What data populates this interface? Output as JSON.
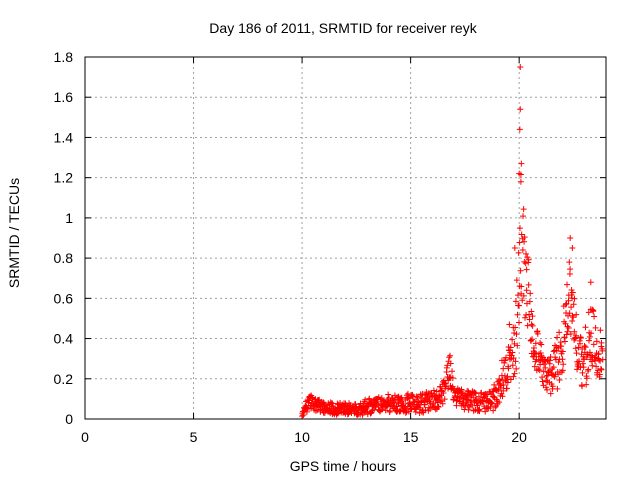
{
  "chart_data": {
    "type": "scatter",
    "title": "Day 186 of 2011, SRMTID for receiver reyk",
    "xlabel": "GPS time / hours",
    "ylabel": "SRMTID / TECUs",
    "xlim": [
      0,
      24
    ],
    "ylim": [
      0,
      1.8
    ],
    "xticks": [
      0,
      5,
      10,
      15,
      20
    ],
    "xtick_labels": [
      "0",
      "5",
      "10",
      "15",
      "20"
    ],
    "yticks": [
      0,
      0.2,
      0.4,
      0.6,
      0.8,
      1.0,
      1.2,
      1.4,
      1.6,
      1.8
    ],
    "ytick_labels": [
      "0",
      "0.2",
      "0.4",
      "0.6",
      "0.8",
      "1",
      "1.2",
      "1.4",
      "1.6",
      "1.8"
    ],
    "grid": true,
    "marker": "+",
    "series": [
      {
        "name": "SRMTID",
        "color": "#ff0000",
        "anchors": {
          "x": [
            10.0,
            10.2,
            10.4,
            10.6,
            11.0,
            11.5,
            12.0,
            12.5,
            13.0,
            13.5,
            14.0,
            14.5,
            15.0,
            15.5,
            16.0,
            16.3,
            16.6,
            16.8,
            17.0,
            17.3,
            17.6,
            18.0,
            18.4,
            18.8,
            19.0,
            19.2,
            19.4,
            19.6,
            19.8,
            19.95,
            20.05,
            20.15,
            20.3,
            20.45,
            20.6,
            20.8,
            21.0,
            21.2,
            21.4,
            21.6,
            21.8,
            22.0,
            22.2,
            22.4,
            22.6,
            22.8,
            23.0,
            23.2,
            23.4,
            23.6,
            23.85
          ],
          "y": [
            0.02,
            0.06,
            0.08,
            0.07,
            0.06,
            0.05,
            0.05,
            0.05,
            0.06,
            0.07,
            0.08,
            0.07,
            0.08,
            0.08,
            0.09,
            0.1,
            0.15,
            0.25,
            0.12,
            0.1,
            0.09,
            0.09,
            0.08,
            0.1,
            0.14,
            0.2,
            0.25,
            0.28,
            0.38,
            0.6,
            0.95,
            0.82,
            0.7,
            0.62,
            0.45,
            0.35,
            0.28,
            0.22,
            0.2,
            0.25,
            0.3,
            0.35,
            0.55,
            0.62,
            0.4,
            0.3,
            0.28,
            0.38,
            0.42,
            0.3,
            0.34
          ],
          "spread": [
            0.01,
            0.04,
            0.04,
            0.03,
            0.03,
            0.03,
            0.03,
            0.03,
            0.04,
            0.04,
            0.05,
            0.04,
            0.05,
            0.05,
            0.05,
            0.05,
            0.07,
            0.08,
            0.05,
            0.05,
            0.05,
            0.05,
            0.05,
            0.06,
            0.08,
            0.1,
            0.1,
            0.12,
            0.18,
            0.3,
            0.4,
            0.3,
            0.22,
            0.18,
            0.15,
            0.12,
            0.1,
            0.08,
            0.1,
            0.12,
            0.15,
            0.15,
            0.2,
            0.2,
            0.15,
            0.12,
            0.15,
            0.18,
            0.15,
            0.12,
            0.12
          ]
        },
        "outliers": {
          "x": [
            20.05,
            20.05,
            20.03,
            20.1,
            20.0,
            20.08,
            22.35,
            22.45,
            23.3,
            19.8,
            19.55
          ],
          "y": [
            1.75,
            1.54,
            1.44,
            1.27,
            1.22,
            1.18,
            0.9,
            0.85,
            0.68,
            0.85,
            0.47
          ]
        }
      }
    ]
  }
}
